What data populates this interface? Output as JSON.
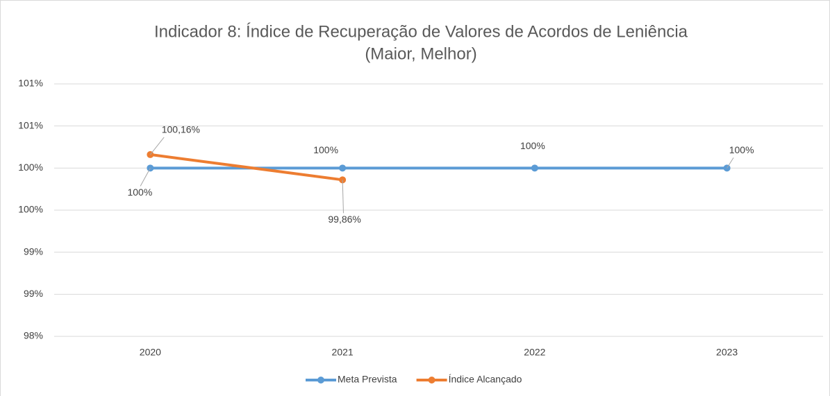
{
  "chart_data": {
    "type": "line",
    "title": "Indicador 8: Índice de Recuperação de Valores de Acordos de Leniência",
    "subtitle": "(Maior, Melhor)",
    "categories": [
      "2020",
      "2021",
      "2022",
      "2023"
    ],
    "series": [
      {
        "name": "Meta Prevista",
        "color": "#5b9bd5",
        "values": [
          100,
          100,
          100,
          100
        ],
        "value_labels": [
          "100%",
          "100%",
          "100%",
          "100%"
        ]
      },
      {
        "name": "Índice Alcançado",
        "color": "#ed7d31",
        "values": [
          100.16,
          99.86,
          null,
          null
        ],
        "value_labels": [
          "100,16%",
          "99,86%",
          null,
          null
        ]
      }
    ],
    "ylim": [
      98,
      101
    ],
    "yticks": [
      {
        "value": 98,
        "label": "98%"
      },
      {
        "value": 98.5,
        "label": "99%"
      },
      {
        "value": 99,
        "label": "99%"
      },
      {
        "value": 99.5,
        "label": "100%"
      },
      {
        "value": 100,
        "label": "100%"
      },
      {
        "value": 100.5,
        "label": "101%"
      },
      {
        "value": 101,
        "label": "101%"
      }
    ],
    "grid": true,
    "legend": "bottom"
  }
}
